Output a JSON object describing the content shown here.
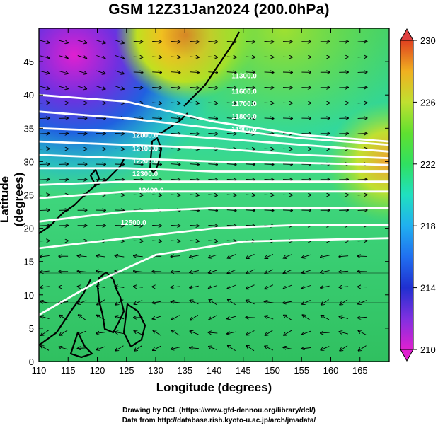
{
  "title": "GSM 12Z31Jan2024 (200.0hPa)",
  "xlabel": "Longitude (degrees)",
  "ylabel": "Latitude  (degrees)",
  "x_ticks": [
    "110",
    "115",
    "120",
    "125",
    "130",
    "135",
    "140",
    "145",
    "150",
    "155",
    "160",
    "165"
  ],
  "y_ticks": [
    "0",
    "5",
    "10",
    "15",
    "20",
    "25",
    "30",
    "35",
    "40",
    "45"
  ],
  "colorbar": {
    "ticks": [
      "210",
      "214",
      "218",
      "222",
      "226",
      "230"
    ],
    "min": 210,
    "max": 230,
    "colors": [
      "#e020d0",
      "#8030e0",
      "#2030d0",
      "#20a0f0",
      "#20e0c0",
      "#30e060",
      "#50e030",
      "#a0e030",
      "#f0e020",
      "#f0a020",
      "#e04020"
    ]
  },
  "contour_labels": [
    "11300.0",
    "11600.0",
    "11700.0",
    "11800.0",
    "11900.0",
    "12000.0",
    "12100.0",
    "12200.0",
    "12300.0",
    "12400.0",
    "12500.0"
  ],
  "credits": {
    "line1": "Drawing by DCL (https://www.gfd-dennou.org/library/dcl/)",
    "line2": "Data from http://database.rish.kyoto-u.ac.jp/arch/jmadata/"
  },
  "map_data": {
    "lon_range": [
      110,
      170
    ],
    "lat_range": [
      0,
      50
    ],
    "field": "temperature (K)",
    "vectors": "wind streamlines",
    "contours": "geopotential height (m)"
  }
}
